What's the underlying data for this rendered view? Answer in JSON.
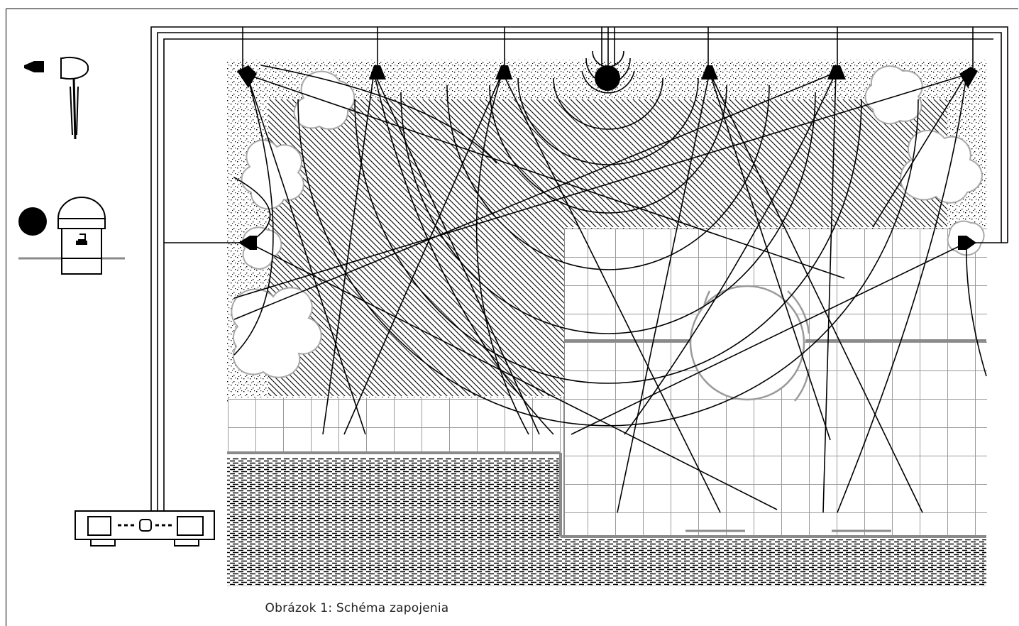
{
  "caption": "Obrázok 1: Schéma zapojenia",
  "legend": {
    "items": [
      {
        "icon": "spotlight-icon"
      },
      {
        "icon": "subwoofer-icon"
      }
    ]
  },
  "components": {
    "amplifier_icon": "amplifier-icon",
    "spotlight_speaker_count": 8,
    "subwoofer_count": 1
  },
  "colors": {
    "ink": "#000000",
    "grid": "#9a9a9a",
    "shrub": "#a8a8a8",
    "paving": "#8a8a8a"
  }
}
